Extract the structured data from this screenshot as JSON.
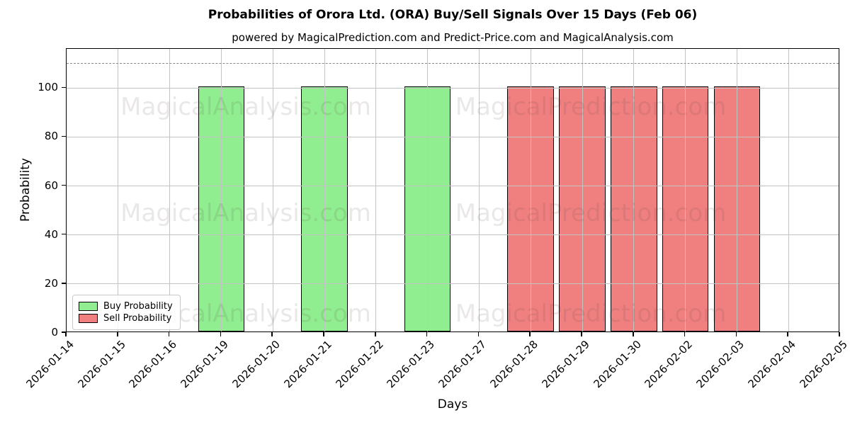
{
  "title": "Probabilities of Orora Ltd. (ORA) Buy/Sell Signals Over 15 Days (Feb 06)",
  "subtitle": "powered by MagicalPrediction.com and Predict-Price.com and MagicalAnalysis.com",
  "watermarks": [
    "MagicalAnalysis.com",
    "MagicalPrediction.com"
  ],
  "colors": {
    "buy": "#90EE90",
    "sell": "#F08080",
    "bar_edge": "#000000",
    "grid": "#c3c3c3",
    "dashed_line": "#888888",
    "background": "#ffffff"
  },
  "legend": {
    "buy_label": "Buy Probability",
    "sell_label": "Sell Probability",
    "position": "lower left"
  },
  "chart_data": {
    "type": "bar",
    "title": "Probabilities of Orora Ltd. (ORA) Buy/Sell Signals Over 15 Days (Feb 06)",
    "subtitle": "powered by MagicalPrediction.com and Predict-Price.com and MagicalAnalysis.com",
    "xlabel": "Days",
    "ylabel": "Probability",
    "categories": [
      "2026-01-14",
      "2026-01-15",
      "2026-01-16",
      "2026-01-19",
      "2026-01-20",
      "2026-01-21",
      "2026-01-22",
      "2026-01-23",
      "2026-01-27",
      "2026-01-28",
      "2026-01-29",
      "2026-01-30",
      "2026-02-02",
      "2026-02-03",
      "2026-02-04",
      "2026-02-05"
    ],
    "series": [
      {
        "name": "Buy Probability",
        "color": "#90EE90",
        "values": [
          0,
          0,
          0,
          100,
          0,
          100,
          0,
          100,
          0,
          0,
          0,
          0,
          0,
          0,
          0,
          0
        ]
      },
      {
        "name": "Sell Probability",
        "color": "#F08080",
        "values": [
          0,
          0,
          0,
          0,
          0,
          0,
          0,
          0,
          0,
          100,
          100,
          100,
          100,
          100,
          0,
          0
        ]
      }
    ],
    "ylim": [
      0,
      116
    ],
    "yticks": [
      0,
      20,
      40,
      60,
      80,
      100
    ],
    "dashed_line_y": 110,
    "bar_width_fraction": 0.9,
    "grid": true,
    "legend_position": "lower left"
  }
}
